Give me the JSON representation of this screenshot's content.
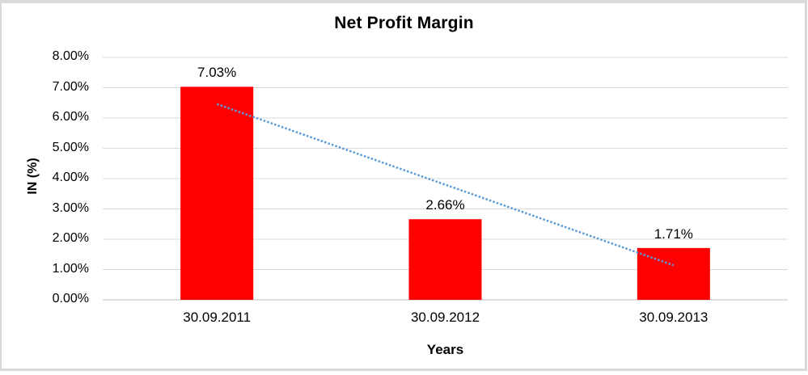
{
  "frame": {
    "background": "#ffffff",
    "border_color": "#d9d9d9"
  },
  "chart_data": {
    "type": "bar",
    "title": "Net Profit Margin",
    "xlabel": "Years",
    "ylabel": "IN (%)",
    "categories": [
      "30.09.2011",
      "30.09.2012",
      "30.09.2013"
    ],
    "values": [
      7.03,
      2.66,
      1.71
    ],
    "data_labels": [
      "7.03%",
      "2.66%",
      "1.71%"
    ],
    "ylim": [
      0,
      8
    ],
    "y_tick_step": 1,
    "y_tick_labels": [
      "0.00%",
      "1.00%",
      "2.00%",
      "3.00%",
      "4.00%",
      "5.00%",
      "6.00%",
      "7.00%",
      "8.00%"
    ],
    "grid": true,
    "legend": false,
    "colors": {
      "bar": "#ff0000",
      "gridline": "#d9d9d9",
      "axis_line": "#bfbfbf",
      "trendline": "#5b9bd5",
      "text": "#000000"
    },
    "trendline": {
      "style": "dotted",
      "start_value": 6.46,
      "end_value": 1.14
    }
  }
}
